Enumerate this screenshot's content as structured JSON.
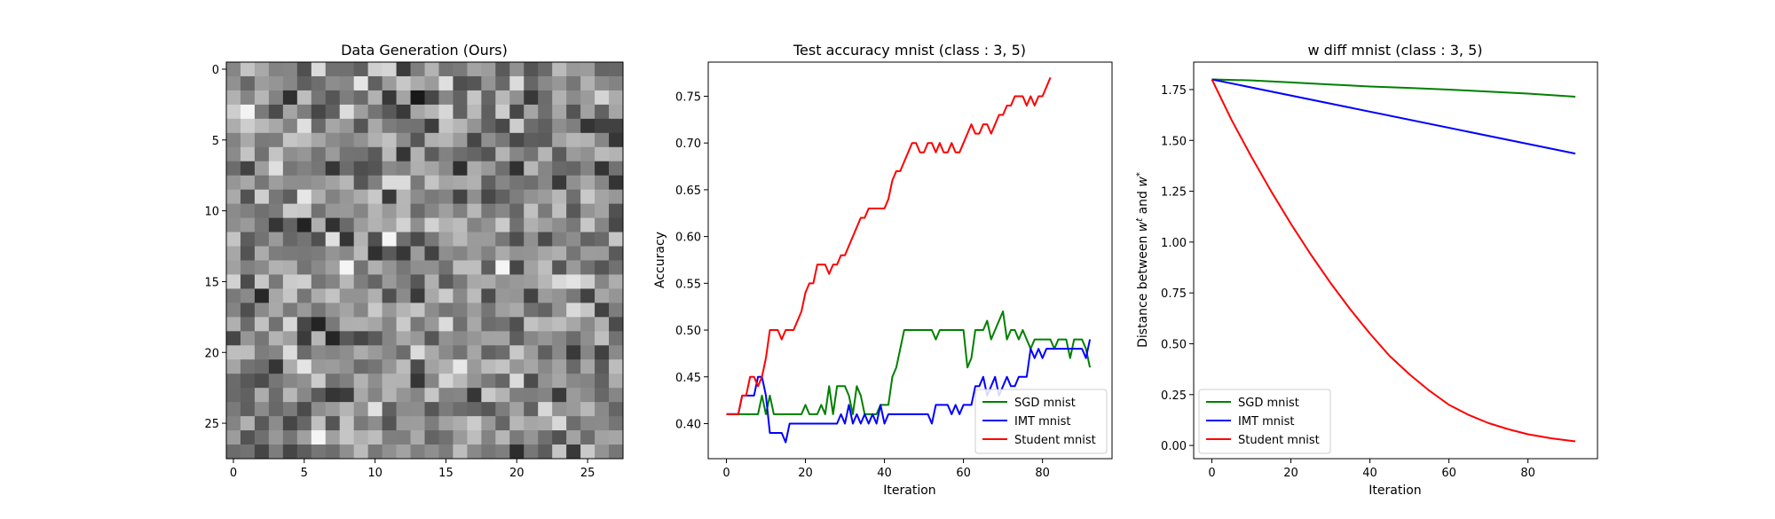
{
  "chart_data": [
    {
      "type": "heatmap",
      "title": "Data Generation (Ours)",
      "xlabel": "",
      "ylabel": "",
      "rows": 28,
      "cols": 28,
      "colormap": "gray",
      "xticks": [
        0,
        5,
        10,
        15,
        20,
        25
      ],
      "yticks": [
        0,
        5,
        10,
        15,
        20,
        25
      ],
      "xlim": [
        -0.5,
        27.5
      ],
      "ylim": [
        27.5,
        -0.5
      ],
      "values_note_seed": 7
    },
    {
      "type": "line",
      "title": "Test accuracy mnist (class : 3, 5)",
      "xlabel": "Iteration",
      "ylabel": "Accuracy",
      "xlim": [
        -4.6,
        97.6
      ],
      "ylim": [
        0.3625,
        0.7865
      ],
      "xticks": [
        0,
        20,
        40,
        60,
        80
      ],
      "yticks": [
        0.4,
        0.45,
        0.5,
        0.55,
        0.6,
        0.65,
        0.7,
        0.75
      ],
      "ytick_labels": [
        "0.40",
        "0.45",
        "0.50",
        "0.55",
        "0.60",
        "0.65",
        "0.70",
        "0.75"
      ],
      "legend": "lower-right",
      "series": [
        {
          "name": "SGD mnist",
          "color": "#008000",
          "points": [
            [
              0,
              0.41
            ],
            [
              8,
              0.41
            ],
            [
              9,
              0.43
            ],
            [
              10,
              0.41
            ],
            [
              11,
              0.43
            ],
            [
              12,
              0.41
            ],
            [
              19,
              0.41
            ],
            [
              20,
              0.42
            ],
            [
              21,
              0.41
            ],
            [
              23,
              0.41
            ],
            [
              24,
              0.42
            ],
            [
              25,
              0.41
            ],
            [
              26,
              0.44
            ],
            [
              27,
              0.41
            ],
            [
              28,
              0.44
            ],
            [
              30,
              0.44
            ],
            [
              31,
              0.43
            ],
            [
              32,
              0.41
            ],
            [
              33,
              0.44
            ],
            [
              34,
              0.43
            ],
            [
              35,
              0.41
            ],
            [
              38,
              0.41
            ],
            [
              39,
              0.42
            ],
            [
              41,
              0.42
            ],
            [
              42,
              0.45
            ],
            [
              43,
              0.46
            ],
            [
              44,
              0.48
            ],
            [
              45,
              0.5
            ],
            [
              52,
              0.5
            ],
            [
              53,
              0.49
            ],
            [
              54,
              0.5
            ],
            [
              60,
              0.5
            ],
            [
              61,
              0.46
            ],
            [
              62,
              0.47
            ],
            [
              63,
              0.5
            ],
            [
              65,
              0.5
            ],
            [
              66,
              0.51
            ],
            [
              67,
              0.49
            ],
            [
              68,
              0.5
            ],
            [
              69,
              0.51
            ],
            [
              70,
              0.52
            ],
            [
              71,
              0.49
            ],
            [
              72,
              0.5
            ],
            [
              73,
              0.5
            ],
            [
              74,
              0.49
            ],
            [
              75,
              0.5
            ],
            [
              76,
              0.49
            ],
            [
              77,
              0.48
            ],
            [
              78,
              0.49
            ],
            [
              82,
              0.49
            ],
            [
              83,
              0.48
            ],
            [
              84,
              0.49
            ],
            [
              86,
              0.49
            ],
            [
              87,
              0.47
            ],
            [
              88,
              0.49
            ],
            [
              90,
              0.49
            ],
            [
              91,
              0.48
            ],
            [
              92,
              0.46
            ]
          ]
        },
        {
          "name": "IMT mnist",
          "color": "#0000ff",
          "points": [
            [
              0,
              0.41
            ],
            [
              3,
              0.41
            ],
            [
              4,
              0.43
            ],
            [
              7,
              0.43
            ],
            [
              8,
              0.45
            ],
            [
              9,
              0.45
            ],
            [
              10,
              0.43
            ],
            [
              11,
              0.39
            ],
            [
              14,
              0.39
            ],
            [
              15,
              0.38
            ],
            [
              16,
              0.4
            ],
            [
              28,
              0.4
            ],
            [
              29,
              0.41
            ],
            [
              30,
              0.4
            ],
            [
              31,
              0.42
            ],
            [
              32,
              0.4
            ],
            [
              33,
              0.41
            ],
            [
              34,
              0.4
            ],
            [
              35,
              0.41
            ],
            [
              36,
              0.4
            ],
            [
              37,
              0.41
            ],
            [
              38,
              0.4
            ],
            [
              39,
              0.42
            ],
            [
              40,
              0.4
            ],
            [
              41,
              0.41
            ],
            [
              51,
              0.41
            ],
            [
              52,
              0.4
            ],
            [
              53,
              0.42
            ],
            [
              56,
              0.42
            ],
            [
              57,
              0.41
            ],
            [
              58,
              0.42
            ],
            [
              59,
              0.41
            ],
            [
              60,
              0.42
            ],
            [
              62,
              0.42
            ],
            [
              63,
              0.44
            ],
            [
              64,
              0.44
            ],
            [
              65,
              0.45
            ],
            [
              66,
              0.43
            ],
            [
              67,
              0.44
            ],
            [
              68,
              0.45
            ],
            [
              69,
              0.43
            ],
            [
              70,
              0.44
            ],
            [
              71,
              0.45
            ],
            [
              72,
              0.44
            ],
            [
              73,
              0.44
            ],
            [
              74,
              0.45
            ],
            [
              76,
              0.45
            ],
            [
              77,
              0.48
            ],
            [
              78,
              0.47
            ],
            [
              79,
              0.48
            ],
            [
              80,
              0.47
            ],
            [
              81,
              0.48
            ],
            [
              90,
              0.48
            ],
            [
              91,
              0.47
            ],
            [
              92,
              0.49
            ]
          ]
        },
        {
          "name": "Student mnist",
          "color": "#ff0000",
          "points": [
            [
              0,
              0.41
            ],
            [
              3,
              0.41
            ],
            [
              4,
              0.43
            ],
            [
              5,
              0.43
            ],
            [
              6,
              0.45
            ],
            [
              7,
              0.45
            ],
            [
              8,
              0.44
            ],
            [
              9,
              0.45
            ],
            [
              10,
              0.47
            ],
            [
              11,
              0.5
            ],
            [
              13,
              0.5
            ],
            [
              14,
              0.49
            ],
            [
              15,
              0.5
            ],
            [
              17,
              0.5
            ],
            [
              18,
              0.51
            ],
            [
              19,
              0.52
            ],
            [
              20,
              0.54
            ],
            [
              21,
              0.55
            ],
            [
              22,
              0.55
            ],
            [
              23,
              0.57
            ],
            [
              25,
              0.57
            ],
            [
              26,
              0.56
            ],
            [
              27,
              0.57
            ],
            [
              28,
              0.57
            ],
            [
              29,
              0.58
            ],
            [
              30,
              0.58
            ],
            [
              31,
              0.59
            ],
            [
              32,
              0.6
            ],
            [
              33,
              0.61
            ],
            [
              34,
              0.62
            ],
            [
              35,
              0.62
            ],
            [
              36,
              0.63
            ],
            [
              40,
              0.63
            ],
            [
              41,
              0.64
            ],
            [
              42,
              0.66
            ],
            [
              43,
              0.67
            ],
            [
              44,
              0.67
            ],
            [
              45,
              0.68
            ],
            [
              46,
              0.69
            ],
            [
              47,
              0.7
            ],
            [
              48,
              0.7
            ],
            [
              49,
              0.69
            ],
            [
              50,
              0.69
            ],
            [
              51,
              0.7
            ],
            [
              52,
              0.7
            ],
            [
              53,
              0.69
            ],
            [
              54,
              0.7
            ],
            [
              55,
              0.69
            ],
            [
              56,
              0.69
            ],
            [
              57,
              0.7
            ],
            [
              58,
              0.69
            ],
            [
              59,
              0.69
            ],
            [
              60,
              0.7
            ],
            [
              61,
              0.71
            ],
            [
              62,
              0.72
            ],
            [
              63,
              0.71
            ],
            [
              64,
              0.71
            ],
            [
              65,
              0.72
            ],
            [
              66,
              0.72
            ],
            [
              67,
              0.71
            ],
            [
              68,
              0.72
            ],
            [
              69,
              0.73
            ],
            [
              70,
              0.73
            ],
            [
              71,
              0.74
            ],
            [
              72,
              0.74
            ],
            [
              73,
              0.75
            ],
            [
              74,
              0.75
            ],
            [
              75,
              0.75
            ],
            [
              76,
              0.74
            ],
            [
              77,
              0.75
            ],
            [
              78,
              0.74
            ],
            [
              79,
              0.75
            ],
            [
              80,
              0.75
            ],
            [
              81,
              0.76
            ],
            [
              82,
              0.77
            ]
          ]
        }
      ]
    },
    {
      "type": "line",
      "title": "w diff mnist (class : 3, 5)",
      "xlabel": "Iteration",
      "ylabel": "Distance between w^t and w^*",
      "xlim": [
        -4.6,
        97.6
      ],
      "ylim": [
        -0.065,
        1.885
      ],
      "xticks": [
        0,
        20,
        40,
        60,
        80
      ],
      "yticks": [
        0.0,
        0.25,
        0.5,
        0.75,
        1.0,
        1.25,
        1.5,
        1.75
      ],
      "ytick_labels": [
        "0.00",
        "0.25",
        "0.50",
        "0.75",
        "1.00",
        "1.25",
        "1.50",
        "1.75"
      ],
      "legend": "lower-left",
      "series": [
        {
          "name": "SGD mnist",
          "color": "#008000",
          "points": [
            [
              0,
              1.8
            ],
            [
              10,
              1.795
            ],
            [
              20,
              1.785
            ],
            [
              30,
              1.775
            ],
            [
              40,
              1.765
            ],
            [
              50,
              1.758
            ],
            [
              60,
              1.75
            ],
            [
              70,
              1.74
            ],
            [
              80,
              1.73
            ],
            [
              92,
              1.715
            ]
          ]
        },
        {
          "name": "IMT mnist",
          "color": "#0000ff",
          "points": [
            [
              0,
              1.8
            ],
            [
              92,
              1.435
            ]
          ]
        },
        {
          "name": "Student mnist",
          "color": "#ff0000",
          "points": [
            [
              0,
              1.8
            ],
            [
              5,
              1.6
            ],
            [
              10,
              1.42
            ],
            [
              15,
              1.25
            ],
            [
              20,
              1.09
            ],
            [
              25,
              0.94
            ],
            [
              30,
              0.8
            ],
            [
              35,
              0.67
            ],
            [
              40,
              0.55
            ],
            [
              45,
              0.44
            ],
            [
              50,
              0.35
            ],
            [
              55,
              0.27
            ],
            [
              60,
              0.2
            ],
            [
              65,
              0.15
            ],
            [
              70,
              0.11
            ],
            [
              75,
              0.08
            ],
            [
              80,
              0.055
            ],
            [
              86,
              0.035
            ],
            [
              92,
              0.02
            ]
          ]
        }
      ]
    }
  ]
}
